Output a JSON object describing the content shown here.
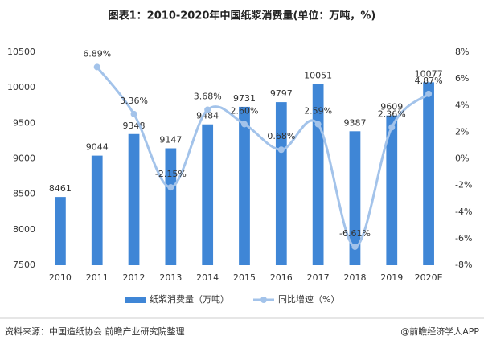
{
  "chart_data": {
    "type": "bar-line",
    "title": "图表1：2010-2020年中国纸浆消费量(单位：万吨，%)",
    "categories": [
      "2010",
      "2011",
      "2012",
      "2013",
      "2014",
      "2015",
      "2016",
      "2017",
      "2018",
      "2019",
      "2020E"
    ],
    "series": [
      {
        "name": "纸浆消费量（万吨）",
        "color": "#3f86d6",
        "type": "bar",
        "values": [
          8461,
          9044,
          9348,
          9147,
          9484,
          9731,
          9797,
          10051,
          9387,
          9609,
          10077
        ]
      },
      {
        "name": "同比增速（%）",
        "color": "#a3c3ea",
        "type": "line",
        "axis": "y2",
        "values": [
          null,
          6.89,
          3.36,
          -2.15,
          3.68,
          2.6,
          0.68,
          2.59,
          -6.61,
          2.36,
          4.87
        ],
        "value_labels": [
          null,
          "6.89%",
          "3.36%",
          "-2.15%",
          "3.68%",
          "2.60%",
          "0.68%",
          "2.59%",
          "-6.61%",
          "2.36%",
          "4.87%"
        ]
      }
    ],
    "ylim": [
      7500,
      10500
    ],
    "yticks": [
      7500,
      8000,
      8500,
      9000,
      9500,
      10000,
      10500
    ],
    "y2lim": [
      -8,
      8
    ],
    "y2ticks": [
      {
        "value": -8,
        "label": "-8%"
      },
      {
        "value": -6,
        "label": "-6%"
      },
      {
        "value": -4,
        "label": "-4%"
      },
      {
        "value": -2,
        "label": "-2%"
      },
      {
        "value": 0,
        "label": "0%"
      },
      {
        "value": 2,
        "label": "2%"
      },
      {
        "value": 4,
        "label": "4%"
      },
      {
        "value": 6,
        "label": "6%"
      },
      {
        "value": 8,
        "label": "8%"
      }
    ],
    "grid": false,
    "legend": "bottom",
    "source": "资料来源：中国造纸协会 前瞻产业研究院整理",
    "credit": "@前瞻经济学人APP"
  }
}
